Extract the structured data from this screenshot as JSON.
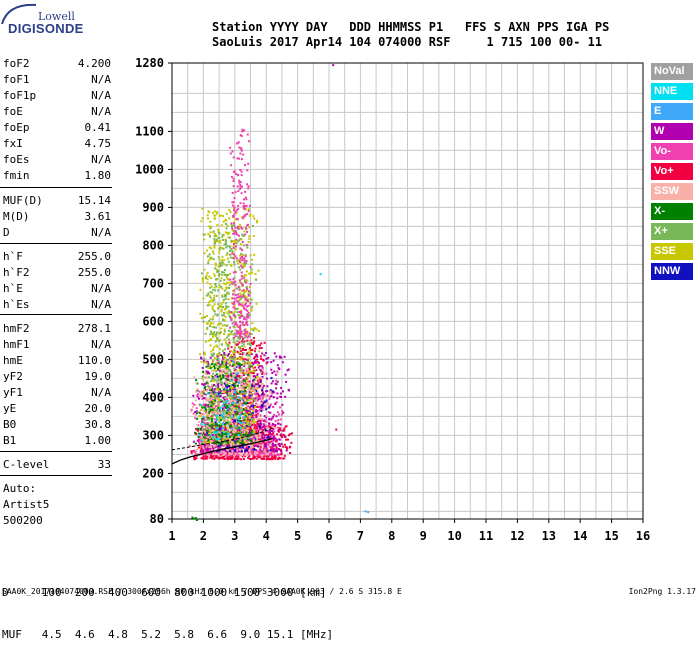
{
  "logo": {
    "top": "Lowell",
    "bottom": "DIGISONDE"
  },
  "header": {
    "line1": "Station YYYY DAY   DDD HHMMSS P1   FFS S AXN PPS IGA PS",
    "line2": "SaoLuis 2017 Apr14 104 074000 RSF     1 715 100 00- 11"
  },
  "params": [
    {
      "name": "foF2",
      "value": "4.200"
    },
    {
      "name": "foF1",
      "value": "N/A"
    },
    {
      "name": "foF1p",
      "value": "N/A"
    },
    {
      "name": "foE",
      "value": "N/A"
    },
    {
      "name": "foEp",
      "value": "0.41"
    },
    {
      "name": "fxI",
      "value": "4.75"
    },
    {
      "name": "foEs",
      "value": "N/A"
    },
    {
      "name": "fmin",
      "value": "1.80"
    },
    {
      "name": "MUF(D)",
      "value": "15.14"
    },
    {
      "name": "M(D)",
      "value": "3.61"
    },
    {
      "name": "D",
      "value": "N/A"
    },
    {
      "name": "h`F",
      "value": "255.0"
    },
    {
      "name": "h`F2",
      "value": "255.0"
    },
    {
      "name": "h`E",
      "value": "N/A"
    },
    {
      "name": "h`Es",
      "value": "N/A"
    },
    {
      "name": "hmF2",
      "value": "278.1"
    },
    {
      "name": "hmF1",
      "value": "N/A"
    },
    {
      "name": "hmE",
      "value": "110.0"
    },
    {
      "name": "yF2",
      "value": "19.0"
    },
    {
      "name": "yF1",
      "value": "N/A"
    },
    {
      "name": "yE",
      "value": "20.0"
    },
    {
      "name": "B0",
      "value": "30.8"
    },
    {
      "name": "B1",
      "value": "1.00"
    },
    {
      "name": "C-level",
      "value": "33"
    }
  ],
  "autoscaling": {
    "line1": "Auto:",
    "line2": "Artist5",
    "line3": "500200"
  },
  "legend": [
    {
      "label": "NoVal",
      "color": "#a0a0a0"
    },
    {
      "label": "NNE",
      "color": "#00e0f0"
    },
    {
      "label": "E",
      "color": "#40a8f8"
    },
    {
      "label": "W",
      "color": "#b000b0"
    },
    {
      "label": "Vo-",
      "color": "#f040b0"
    },
    {
      "label": "Vo+",
      "color": "#f00040"
    },
    {
      "label": "SSW",
      "color": "#f8b0a8"
    },
    {
      "label": "X-",
      "color": "#008000"
    },
    {
      "label": "X+",
      "color": "#78b858"
    },
    {
      "label": "SSE",
      "color": "#c8c800"
    },
    {
      "label": "NNW",
      "color": "#1010c0"
    }
  ],
  "bottom_table": {
    "row1": "D     100  200  400  600  800 1000 1500 3000 [km]",
    "row2": "MUF   4.5  4.6  4.8  5.2  5.8  6.6  9.0 15.1 [MHz]"
  },
  "footer": {
    "left": "SAA0K_2017104074000.RSF / 300fx256h 50 kHz 5.0 km / DPS-4 SAA0K 903 / 2.6 S 315.8 E",
    "right": "Ion2Png 1.3.17"
  },
  "chart_data": {
    "type": "scatter",
    "title": "",
    "xlabel": "",
    "ylabel": "",
    "xlim": [
      1,
      16
    ],
    "ylim": [
      80,
      1280
    ],
    "x_ticks": [
      1,
      2,
      3,
      4,
      5,
      6,
      7,
      8,
      9,
      10,
      11,
      12,
      13,
      14,
      15,
      16
    ],
    "y_ticks": [
      80,
      200,
      300,
      400,
      500,
      600,
      700,
      800,
      900,
      1000,
      1100,
      1280
    ],
    "grid": true,
    "legend_position": "right",
    "clusters": [
      {
        "series": "Vo+",
        "x_range": [
          1.4,
          4.9
        ],
        "y_range": [
          240,
          330
        ],
        "density": 0.9
      },
      {
        "series": "Vo-",
        "x_range": [
          1.5,
          4.6
        ],
        "y_range": [
          250,
          420
        ],
        "density": 0.6
      },
      {
        "series": "Vo+",
        "x_range": [
          2.6,
          4.0
        ],
        "y_range": [
          300,
          560
        ],
        "density": 0.5
      },
      {
        "series": "W",
        "x_range": [
          1.6,
          4.8
        ],
        "y_range": [
          260,
          520
        ],
        "density": 0.35
      },
      {
        "series": "NNW",
        "x_range": [
          2.0,
          4.3
        ],
        "y_range": [
          260,
          460
        ],
        "density": 0.2
      },
      {
        "series": "SSE",
        "x_range": [
          1.8,
          3.8
        ],
        "y_range": [
          280,
          900
        ],
        "density": 0.3
      },
      {
        "series": "X+",
        "x_range": [
          1.9,
          3.7
        ],
        "y_range": [
          290,
          860
        ],
        "density": 0.25
      },
      {
        "series": "X-",
        "x_range": [
          1.6,
          3.6
        ],
        "y_range": [
          280,
          500
        ],
        "density": 0.25
      },
      {
        "series": "Vo-",
        "x_range": [
          2.8,
          3.5
        ],
        "y_range": [
          560,
          1110
        ],
        "density": 0.35
      },
      {
        "series": "SSW",
        "x_range": [
          1.5,
          4.4
        ],
        "y_range": [
          250,
          480
        ],
        "density": 0.25
      },
      {
        "series": "NNE",
        "x_range": [
          1.8,
          3.5
        ],
        "y_range": [
          290,
          420
        ],
        "density": 0.1
      },
      {
        "series": "E",
        "x_range": [
          2.5,
          3.3
        ],
        "y_range": [
          320,
          500
        ],
        "density": 0.08
      },
      {
        "series": "X-",
        "x_range": [
          1.5,
          1.8
        ],
        "y_range": [
          80,
          90
        ],
        "density": 0.8
      },
      {
        "series": "E",
        "x_range": [
          7.1,
          7.3
        ],
        "y_range": [
          100,
          105
        ],
        "density": 0.8
      }
    ],
    "isolated_points": [
      {
        "x": 6.1,
        "y": 1277,
        "series": "W"
      },
      {
        "x": 5.7,
        "y": 727,
        "series": "NNE"
      },
      {
        "x": 6.2,
        "y": 318,
        "series": "Vo+"
      }
    ],
    "trace_virtual_height": [
      {
        "x": 1.0,
        "y": 225
      },
      {
        "x": 1.3,
        "y": 236
      },
      {
        "x": 1.6,
        "y": 244
      },
      {
        "x": 2.0,
        "y": 252
      },
      {
        "x": 2.5,
        "y": 262
      },
      {
        "x": 3.0,
        "y": 270
      },
      {
        "x": 3.5,
        "y": 278
      },
      {
        "x": 4.0,
        "y": 287
      },
      {
        "x": 4.2,
        "y": 292
      }
    ],
    "trace_dashed": [
      {
        "x": 1.0,
        "y": 262
      },
      {
        "x": 1.3,
        "y": 266
      },
      {
        "x": 1.6,
        "y": 270
      },
      {
        "x": 2.0,
        "y": 276
      },
      {
        "x": 2.5,
        "y": 282
      },
      {
        "x": 3.0,
        "y": 290
      },
      {
        "x": 3.5,
        "y": 300
      },
      {
        "x": 4.0,
        "y": 312
      },
      {
        "x": 4.2,
        "y": 320
      }
    ]
  }
}
